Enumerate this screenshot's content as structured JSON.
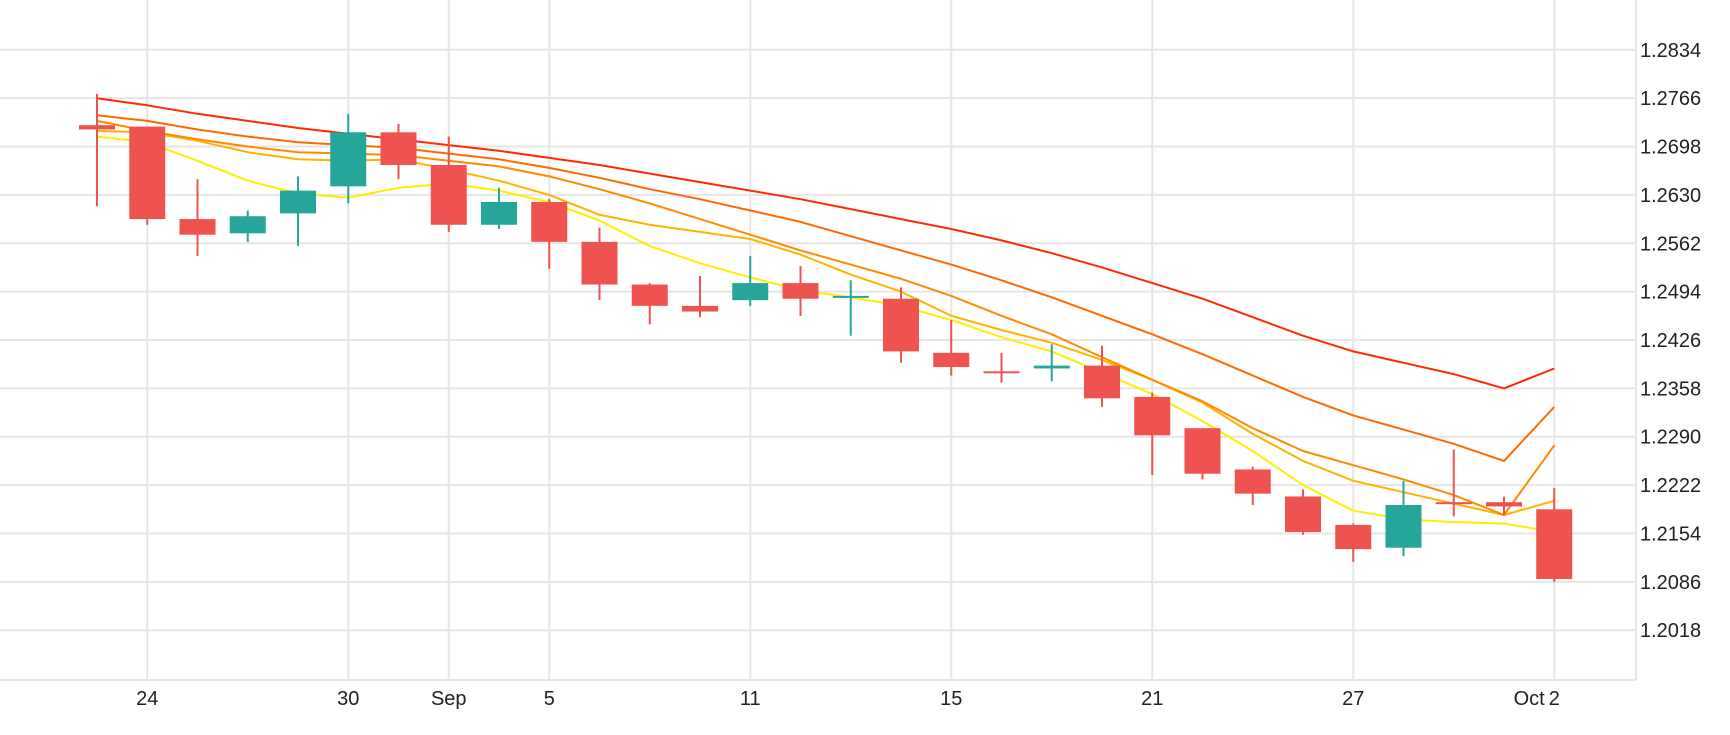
{
  "chart_data": {
    "type": "candlestick",
    "y_ticks": [
      "1.2834",
      "1.2766",
      "1.2698",
      "1.2630",
      "1.2562",
      "1.2494",
      "1.2426",
      "1.2358",
      "1.2290",
      "1.2222",
      "1.2154",
      "1.2086",
      "1.2018"
    ],
    "y_tick_values": [
      1.2834,
      1.2766,
      1.2698,
      1.263,
      1.2562,
      1.2494,
      1.2426,
      1.2358,
      1.229,
      1.2222,
      1.2154,
      1.2086,
      1.2018
    ],
    "ylim": [
      1.1948,
      1.2904
    ],
    "x_ticks": [
      {
        "label": "24",
        "index": 1
      },
      {
        "label": "30",
        "index": 5
      },
      {
        "label": "Sep",
        "index": 7
      },
      {
        "label": "5",
        "index": 9
      },
      {
        "label": "11",
        "index": 13
      },
      {
        "label": "15",
        "index": 17
      },
      {
        "label": "21",
        "index": 21
      },
      {
        "label": "27",
        "index": 25
      },
      {
        "label": "Oct",
        "index": 28.5
      },
      {
        "label": "2",
        "index": 29
      }
    ],
    "candles": [
      {
        "o": 1.2728,
        "h": 1.2772,
        "l": 1.2614,
        "c": 1.2722
      },
      {
        "o": 1.2726,
        "h": 1.2726,
        "l": 1.2588,
        "c": 1.2596
      },
      {
        "o": 1.2596,
        "h": 1.2652,
        "l": 1.2544,
        "c": 1.2574
      },
      {
        "o": 1.2576,
        "h": 1.2608,
        "l": 1.2564,
        "c": 1.26
      },
      {
        "o": 1.2604,
        "h": 1.2656,
        "l": 1.2558,
        "c": 1.2636
      },
      {
        "o": 1.2642,
        "h": 1.2744,
        "l": 1.2618,
        "c": 1.2718
      },
      {
        "o": 1.2718,
        "h": 1.273,
        "l": 1.2652,
        "c": 1.2672
      },
      {
        "o": 1.2672,
        "h": 1.2712,
        "l": 1.2578,
        "c": 1.2588
      },
      {
        "o": 1.2588,
        "h": 1.264,
        "l": 1.2582,
        "c": 1.262
      },
      {
        "o": 1.262,
        "h": 1.2624,
        "l": 1.2526,
        "c": 1.2564
      },
      {
        "o": 1.2564,
        "h": 1.2584,
        "l": 1.2482,
        "c": 1.2504
      },
      {
        "o": 1.2504,
        "h": 1.2506,
        "l": 1.2448,
        "c": 1.2474
      },
      {
        "o": 1.2474,
        "h": 1.2516,
        "l": 1.2458,
        "c": 1.2466
      },
      {
        "o": 1.2482,
        "h": 1.2544,
        "l": 1.2474,
        "c": 1.2506
      },
      {
        "o": 1.2506,
        "h": 1.253,
        "l": 1.246,
        "c": 1.2484
      },
      {
        "o": 1.2486,
        "h": 1.251,
        "l": 1.2432,
        "c": 1.2488
      },
      {
        "o": 1.2484,
        "h": 1.25,
        "l": 1.2394,
        "c": 1.241
      },
      {
        "o": 1.2408,
        "h": 1.2454,
        "l": 1.2376,
        "c": 1.2388
      },
      {
        "o": 1.2382,
        "h": 1.2408,
        "l": 1.2366,
        "c": 1.2382
      },
      {
        "o": 1.2386,
        "h": 1.242,
        "l": 1.2368,
        "c": 1.239
      },
      {
        "o": 1.239,
        "h": 1.2418,
        "l": 1.2332,
        "c": 1.2344
      },
      {
        "o": 1.2346,
        "h": 1.2352,
        "l": 1.2236,
        "c": 1.2292
      },
      {
        "o": 1.2302,
        "h": 1.2302,
        "l": 1.223,
        "c": 1.2238
      },
      {
        "o": 1.2244,
        "h": 1.2248,
        "l": 1.2194,
        "c": 1.221
      },
      {
        "o": 1.2206,
        "h": 1.2216,
        "l": 1.2152,
        "c": 1.2156
      },
      {
        "o": 1.2166,
        "h": 1.2168,
        "l": 1.2114,
        "c": 1.2132
      },
      {
        "o": 1.2134,
        "h": 1.2228,
        "l": 1.2122,
        "c": 1.2194
      },
      {
        "o": 1.2198,
        "h": 1.2272,
        "l": 1.2178,
        "c": 1.2196
      },
      {
        "o": 1.2198,
        "h": 1.2206,
        "l": 1.218,
        "c": 1.2192
      },
      {
        "o": 1.2188,
        "h": 1.2218,
        "l": 1.2086,
        "c": 1.209
      }
    ],
    "moving_averages": [
      {
        "color": "#ffee00",
        "values": [
          1.2712,
          1.2704,
          1.2678,
          1.265,
          1.2632,
          1.2626,
          1.264,
          1.2646,
          1.2636,
          1.262,
          1.2594,
          1.2558,
          1.2534,
          1.2514,
          1.2496,
          1.2486,
          1.2474,
          1.2454,
          1.243,
          1.241,
          1.238,
          1.235,
          1.2312,
          1.227,
          1.2222,
          1.2186,
          1.2174,
          1.217,
          1.2168,
          1.2156
        ]
      },
      {
        "color": "#ffb300",
        "values": [
          1.272,
          1.2718,
          1.2706,
          1.269,
          1.268,
          1.2678,
          1.268,
          1.2666,
          1.265,
          1.263,
          1.2602,
          1.2588,
          1.2578,
          1.2568,
          1.2546,
          1.2518,
          1.2494,
          1.246,
          1.244,
          1.2422,
          1.2398,
          1.237,
          1.2338,
          1.2294,
          1.2256,
          1.2228,
          1.2212,
          1.2196,
          1.218,
          1.22
        ]
      },
      {
        "color": "#ff8a00",
        "values": [
          1.2734,
          1.272,
          1.2708,
          1.2698,
          1.269,
          1.2688,
          1.2686,
          1.2678,
          1.267,
          1.2656,
          1.2638,
          1.2618,
          1.2596,
          1.2574,
          1.2552,
          1.2532,
          1.2512,
          1.2488,
          1.246,
          1.2434,
          1.2402,
          1.237,
          1.234,
          1.2302,
          1.227,
          1.225,
          1.223,
          1.2208,
          1.218,
          1.2278
        ]
      },
      {
        "color": "#ff6a00",
        "values": [
          1.2742,
          1.2734,
          1.2722,
          1.2712,
          1.2704,
          1.27,
          1.2696,
          1.2688,
          1.268,
          1.2668,
          1.2654,
          1.2638,
          1.2624,
          1.2608,
          1.2592,
          1.2572,
          1.2552,
          1.2532,
          1.251,
          1.2486,
          1.246,
          1.2434,
          1.2406,
          1.2376,
          1.2346,
          1.232,
          1.23,
          1.228,
          1.2256,
          1.2332
        ]
      },
      {
        "color": "#ff2a00",
        "values": [
          1.2766,
          1.2756,
          1.2744,
          1.2734,
          1.2724,
          1.2716,
          1.2708,
          1.27,
          1.2692,
          1.2682,
          1.2672,
          1.266,
          1.2648,
          1.2636,
          1.2624,
          1.261,
          1.2596,
          1.2582,
          1.2566,
          1.2548,
          1.2528,
          1.2506,
          1.2484,
          1.2458,
          1.2432,
          1.241,
          1.2394,
          1.2378,
          1.2358,
          1.2386
        ]
      }
    ],
    "colors": {
      "up": "#26a69a",
      "down": "#ef5350",
      "grid": "#e6e6e6",
      "text": "#222222"
    },
    "grid": true,
    "legend": "none"
  }
}
